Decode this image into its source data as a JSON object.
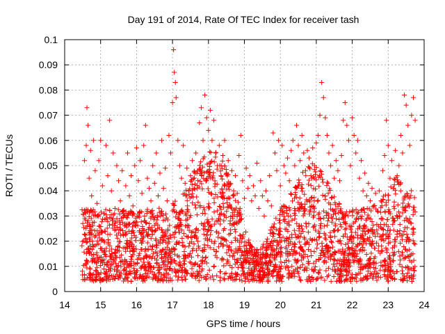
{
  "chart_data": {
    "type": "scatter",
    "title": "Day 191 of 2014, Rate Of TEC Index for receiver tash",
    "xlabel": "GPS time / hours",
    "ylabel": "ROTI / TECUs",
    "xlim": [
      14,
      24
    ],
    "ylim": [
      0,
      0.1
    ],
    "xticks": [
      14,
      15,
      16,
      17,
      18,
      19,
      20,
      21,
      22,
      23,
      24
    ],
    "yticks": [
      "0",
      "0.01",
      "0.02",
      "0.03",
      "0.04",
      "0.05",
      "0.06",
      "0.07",
      "0.08",
      "0.09",
      "0.1"
    ],
    "grid": true,
    "marker": "plus",
    "color": "#ff0000",
    "series": [
      {
        "x": [
          14.55,
          14.6,
          14.62,
          14.65,
          14.68,
          14.72,
          14.75,
          14.8,
          14.85,
          14.9,
          14.95,
          15.0,
          15.05,
          15.1,
          15.15,
          15.2,
          15.25,
          15.3,
          15.35,
          15.4,
          15.45,
          15.5,
          15.55,
          15.6,
          15.65,
          15.7,
          15.75,
          15.8,
          15.85,
          15.9,
          15.95,
          16.0,
          16.05,
          16.1,
          16.15,
          16.2,
          16.25,
          16.3,
          16.35,
          16.4,
          16.45,
          16.5,
          16.55,
          16.6,
          16.65,
          16.7,
          16.75,
          16.8,
          16.85,
          16.9,
          16.95,
          17.0,
          17.03,
          17.05,
          17.08,
          17.1,
          17.15,
          17.2,
          17.25,
          17.3,
          17.35,
          17.4,
          17.45,
          17.5,
          17.55,
          17.6,
          17.65,
          17.7,
          17.75,
          17.8,
          17.85,
          17.9,
          17.95,
          18.0,
          18.05,
          18.1,
          18.15,
          18.2,
          18.25,
          18.3,
          18.35,
          18.4,
          18.45,
          18.5,
          18.55,
          18.6,
          18.65,
          18.7,
          18.75,
          18.8,
          18.85,
          18.9,
          18.95,
          19.0,
          19.05,
          19.1,
          19.15,
          19.2,
          19.25,
          19.3,
          19.35,
          19.4,
          19.45,
          19.5,
          19.55,
          19.6,
          19.65,
          19.7,
          19.75,
          19.8,
          19.85,
          19.9,
          19.95,
          20.0,
          20.05,
          20.1,
          20.15,
          20.2,
          20.25,
          20.3,
          20.35,
          20.4,
          20.45,
          20.5,
          20.55,
          20.6,
          20.65,
          20.7,
          20.75,
          20.8,
          20.85,
          20.9,
          20.95,
          21.0,
          21.05,
          21.1,
          21.15,
          21.2,
          21.25,
          21.3,
          21.35,
          21.4,
          21.45,
          21.5,
          21.55,
          21.6,
          21.65,
          21.7,
          21.75,
          21.8,
          21.85,
          21.9,
          21.95,
          22.0,
          22.05,
          22.1,
          22.15,
          22.2,
          22.25,
          22.3,
          22.35,
          22.4,
          22.45,
          22.5,
          22.55,
          22.6,
          22.65,
          22.7,
          22.75,
          22.8,
          22.85,
          22.9,
          22.95,
          23.0,
          23.05,
          23.1,
          23.15,
          23.2,
          23.25,
          23.3,
          23.35,
          23.4,
          23.45,
          23.5,
          23.55,
          23.6,
          23.65,
          23.7,
          23.75
        ],
        "y": [
          0.052,
          0.058,
          0.073,
          0.066,
          0.045,
          0.056,
          0.038,
          0.06,
          0.048,
          0.035,
          0.052,
          0.06,
          0.042,
          0.031,
          0.058,
          0.046,
          0.068,
          0.04,
          0.055,
          0.033,
          0.05,
          0.044,
          0.036,
          0.048,
          0.03,
          0.042,
          0.055,
          0.038,
          0.046,
          0.034,
          0.05,
          0.057,
          0.044,
          0.052,
          0.039,
          0.058,
          0.066,
          0.045,
          0.041,
          0.036,
          0.05,
          0.043,
          0.055,
          0.038,
          0.047,
          0.06,
          0.041,
          0.049,
          0.036,
          0.062,
          0.055,
          0.075,
          0.096,
          0.087,
          0.083,
          0.077,
          0.06,
          0.05,
          0.045,
          0.058,
          0.043,
          0.049,
          0.04,
          0.046,
          0.052,
          0.041,
          0.055,
          0.048,
          0.067,
          0.073,
          0.06,
          0.078,
          0.069,
          0.064,
          0.072,
          0.06,
          0.068,
          0.055,
          0.05,
          0.058,
          0.046,
          0.054,
          0.06,
          0.047,
          0.052,
          0.043,
          0.048,
          0.04,
          0.046,
          0.039,
          0.054,
          0.062,
          0.044,
          0.037,
          0.049,
          0.041,
          0.046,
          0.036,
          0.042,
          0.038,
          0.051,
          0.033,
          0.044,
          0.038,
          0.03,
          0.04,
          0.036,
          0.046,
          0.034,
          0.063,
          0.055,
          0.048,
          0.06,
          0.042,
          0.058,
          0.05,
          0.047,
          0.053,
          0.044,
          0.056,
          0.06,
          0.05,
          0.066,
          0.058,
          0.052,
          0.062,
          0.055,
          0.048,
          0.056,
          0.053,
          0.046,
          0.057,
          0.05,
          0.059,
          0.062,
          0.07,
          0.083,
          0.077,
          0.069,
          0.062,
          0.055,
          0.05,
          0.058,
          0.045,
          0.052,
          0.048,
          0.044,
          0.054,
          0.068,
          0.075,
          0.066,
          0.06,
          0.05,
          0.069,
          0.062,
          0.055,
          0.06,
          0.045,
          0.052,
          0.04,
          0.047,
          0.038,
          0.043,
          0.036,
          0.041,
          0.034,
          0.039,
          0.032,
          0.04,
          0.036,
          0.048,
          0.054,
          0.068,
          0.058,
          0.045,
          0.052,
          0.041,
          0.056,
          0.046,
          0.05,
          0.062,
          0.055,
          0.078,
          0.074,
          0.066,
          0.058,
          0.07,
          0.077,
          0.068
        ]
      }
    ]
  }
}
